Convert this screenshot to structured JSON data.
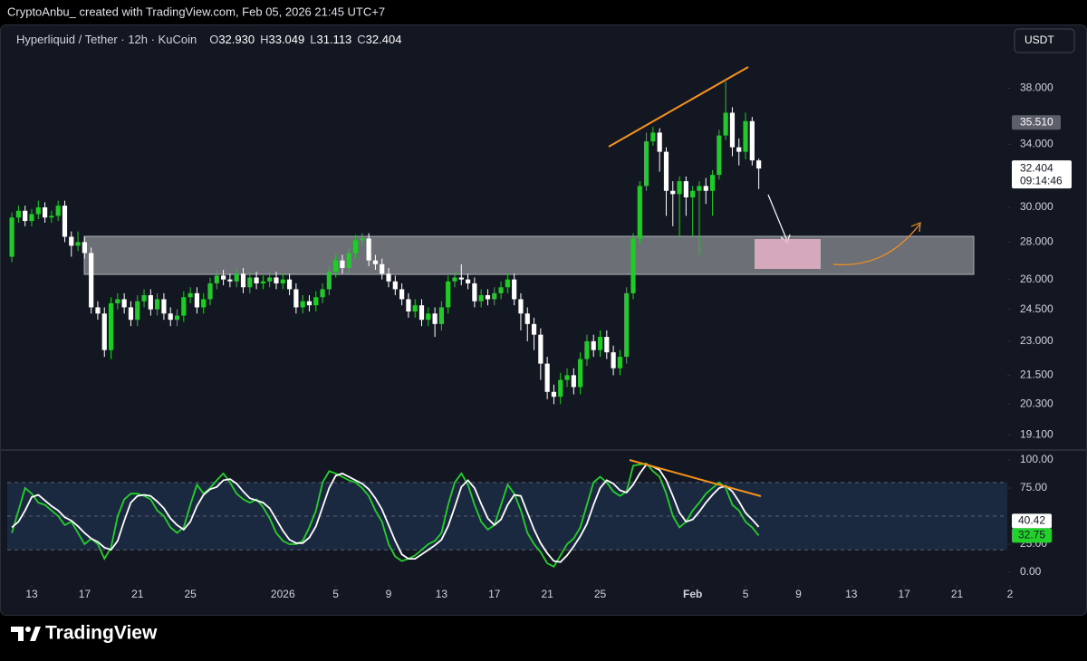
{
  "header": {
    "credit": "CryptoAnbu_ created with TradingView.com, Feb 05, 2026 21:45 UTC+7",
    "currency": "USDT"
  },
  "footer": {
    "brand": "TradingView"
  },
  "chart_data": [
    {
      "type": "candlestick",
      "title": "Hyperliquid / Tether · 12h · KuCoin",
      "ohlc_legend": [
        {
          "key": "O",
          "value": "32.930"
        },
        {
          "key": "H",
          "value": "33.049"
        },
        {
          "key": "L",
          "value": "31.113"
        },
        {
          "key": "C",
          "value": "32.404"
        }
      ],
      "log_scale": true,
      "up_color": "#22c92a",
      "down_color": "#ffffff",
      "xlim": [
        -1.85,
        73.8
      ],
      "xticks": [
        {
          "value": 0,
          "label": "13"
        },
        {
          "value": 4,
          "label": "17"
        },
        {
          "value": 8,
          "label": "21"
        },
        {
          "value": 12,
          "label": "25"
        },
        {
          "value": 19,
          "label": "2026"
        },
        {
          "value": 23,
          "label": "5"
        },
        {
          "value": 27,
          "label": "9"
        },
        {
          "value": 31,
          "label": "13"
        },
        {
          "value": 35,
          "label": "17"
        },
        {
          "value": 39,
          "label": "21"
        },
        {
          "value": 43,
          "label": "25"
        },
        {
          "value": 50,
          "label": "Feb"
        },
        {
          "value": 54,
          "label": "5"
        },
        {
          "value": 58,
          "label": "9"
        },
        {
          "value": 62,
          "label": "13"
        },
        {
          "value": 66,
          "label": "17"
        },
        {
          "value": 70,
          "label": "21"
        },
        {
          "value": 74,
          "label": "2"
        }
      ],
      "ylim": [
        18.6,
        42.9
      ],
      "yticks": [
        {
          "value": 38,
          "label": "38.000"
        },
        {
          "value": 34,
          "label": "34.000"
        },
        {
          "value": 30,
          "label": "30.000"
        },
        {
          "value": 28,
          "label": "28.000"
        },
        {
          "value": 26,
          "label": "26.000"
        },
        {
          "value": 24.5,
          "label": "24.500"
        },
        {
          "value": 23,
          "label": "23.000"
        },
        {
          "value": 21.5,
          "label": "21.500"
        },
        {
          "value": 20.3,
          "label": "20.300"
        },
        {
          "value": 19.1,
          "label": "19.100"
        }
      ],
      "price_marker": {
        "value": 35.51,
        "label": "35.510"
      },
      "countdown": "09:14:46",
      "x": [
        -1.5,
        -1,
        -0.5,
        0,
        0.5,
        1,
        1.5,
        2,
        2.5,
        3,
        3.5,
        4,
        4.5,
        5,
        5.5,
        6,
        6.5,
        7,
        7.5,
        8,
        8.5,
        9,
        9.5,
        10,
        10.5,
        11,
        11.5,
        12,
        12.5,
        13,
        13.5,
        14,
        14.5,
        15,
        15.5,
        16,
        16.5,
        17,
        17.5,
        18,
        18.5,
        19,
        19.5,
        20,
        20.5,
        21,
        21.5,
        22,
        22.5,
        23,
        23.5,
        24,
        24.5,
        25,
        25.5,
        26,
        26.5,
        27,
        27.5,
        28,
        28.5,
        29,
        29.5,
        30,
        30.5,
        31,
        31.5,
        32,
        32.5,
        33,
        33.5,
        34,
        34.5,
        35,
        35.5,
        36,
        36.5,
        37,
        37.5,
        38,
        38.5,
        39,
        39.5,
        40,
        40.5,
        41,
        41.5,
        42,
        42.5,
        43,
        43.5,
        44,
        44.5,
        45,
        45.5,
        46,
        46.5,
        47,
        47.5,
        48,
        48.5,
        49,
        49.5,
        50,
        50.5,
        51,
        51.5,
        52,
        52.5,
        53,
        53.5,
        54,
        54.5,
        55
      ],
      "open": [
        27.2,
        29.4,
        29.8,
        29.2,
        29.6,
        30.0,
        29.4,
        29.5,
        30.1,
        28.3,
        27.8,
        28.0,
        27.4,
        24.6,
        24.3,
        22.6,
        24.8,
        25.0,
        24.6,
        24.0,
        24.9,
        25.2,
        24.5,
        25.0,
        24.3,
        24.0,
        24.2,
        25.1,
        25.3,
        24.6,
        25.0,
        25.8,
        26.2,
        26.0,
        25.9,
        26.3,
        25.6,
        26.1,
        25.8,
        25.9,
        26.1,
        25.8,
        26.0,
        25.5,
        24.6,
        24.9,
        24.7,
        25.1,
        25.5,
        26.4,
        27.0,
        26.6,
        27.4,
        28.1,
        28.2,
        27.0,
        26.8,
        26.3,
        25.9,
        25.5,
        25.0,
        24.4,
        24.7,
        24.0,
        24.3,
        23.8,
        24.6,
        25.9,
        26.1,
        26.0,
        25.8,
        24.9,
        25.2,
        25.0,
        25.3,
        25.6,
        26.0,
        25.0,
        24.3,
        23.8,
        23.3,
        22.0,
        20.8,
        20.6,
        21.3,
        21.5,
        21.0,
        22.2,
        23.0,
        22.6,
        23.2,
        22.5,
        21.8,
        22.3,
        25.3,
        28.2,
        31.3,
        34.2,
        34.8,
        33.5,
        31.0,
        30.8,
        31.6,
        30.6,
        31.0,
        31.3,
        31.0,
        32.0,
        34.6,
        36.2,
        33.8,
        33.5,
        35.6,
        32.93
      ],
      "high": [
        29.7,
        30.1,
        30.1,
        29.9,
        30.4,
        30.3,
        29.8,
        30.4,
        30.4,
        28.6,
        28.6,
        28.3,
        27.7,
        24.9,
        24.6,
        25.1,
        25.3,
        25.3,
        24.9,
        25.2,
        25.5,
        25.5,
        25.3,
        25.3,
        24.6,
        24.5,
        25.4,
        25.6,
        25.6,
        25.3,
        26.1,
        26.5,
        26.5,
        26.3,
        26.6,
        26.6,
        26.4,
        26.4,
        26.2,
        26.4,
        26.4,
        26.3,
        26.3,
        25.8,
        25.2,
        25.2,
        25.4,
        25.8,
        26.7,
        27.3,
        27.3,
        27.7,
        28.4,
        28.5,
        28.5,
        27.3,
        27.1,
        26.6,
        26.2,
        25.8,
        25.3,
        25.0,
        25.0,
        24.6,
        24.6,
        24.9,
        26.2,
        26.4,
        26.8,
        26.3,
        26.1,
        25.5,
        25.5,
        25.6,
        25.9,
        26.3,
        26.3,
        25.3,
        24.6,
        24.1,
        23.6,
        22.3,
        21.1,
        21.6,
        21.8,
        21.8,
        22.5,
        23.3,
        23.3,
        23.5,
        23.5,
        22.8,
        22.6,
        25.6,
        28.5,
        31.6,
        34.8,
        35.2,
        35.1,
        33.8,
        31.6,
        31.9,
        31.9,
        31.3,
        31.6,
        31.8,
        32.3,
        35.0,
        38.5,
        36.6,
        34.4,
        36.2,
        35.9,
        33.049
      ],
      "low": [
        26.9,
        29.1,
        28.9,
        28.9,
        29.3,
        29.1,
        29.1,
        29.2,
        28.0,
        27.2,
        27.5,
        27.1,
        24.3,
        24.0,
        22.3,
        22.2,
        24.5,
        24.3,
        23.7,
        23.7,
        24.6,
        24.2,
        24.2,
        24.0,
        23.7,
        23.7,
        23.9,
        24.8,
        24.3,
        24.3,
        24.7,
        25.5,
        25.7,
        25.6,
        25.6,
        25.3,
        25.3,
        25.5,
        25.5,
        25.6,
        25.5,
        25.5,
        25.2,
        24.3,
        24.3,
        24.4,
        24.4,
        24.8,
        25.2,
        26.1,
        26.3,
        26.3,
        27.1,
        27.8,
        26.7,
        26.5,
        26.0,
        25.6,
        25.2,
        24.7,
        24.1,
        24.1,
        23.7,
        23.7,
        23.2,
        23.5,
        24.3,
        25.6,
        25.7,
        25.5,
        24.6,
        24.6,
        24.7,
        24.7,
        25.0,
        25.3,
        24.7,
        23.5,
        23.0,
        22.6,
        21.3,
        20.5,
        20.3,
        20.3,
        21.0,
        20.7,
        20.7,
        21.9,
        22.3,
        22.3,
        22.2,
        21.5,
        21.5,
        22.0,
        25.0,
        27.9,
        31.0,
        33.9,
        32.2,
        29.5,
        28.9,
        28.3,
        29.5,
        28.3,
        27.3,
        30.2,
        29.5,
        31.7,
        34.3,
        33.2,
        32.6,
        33.0,
        32.6,
        31.113
      ],
      "close": [
        29.4,
        29.8,
        29.2,
        29.6,
        30.0,
        29.4,
        29.5,
        30.1,
        28.3,
        27.8,
        28.0,
        27.4,
        24.6,
        24.3,
        22.6,
        24.8,
        25.0,
        24.6,
        24.0,
        24.9,
        25.2,
        24.5,
        25.0,
        24.3,
        24.0,
        24.2,
        25.1,
        25.3,
        24.6,
        25.0,
        25.8,
        26.2,
        26.0,
        25.9,
        26.3,
        25.6,
        26.1,
        25.8,
        25.9,
        26.1,
        25.8,
        26.0,
        25.5,
        24.6,
        24.9,
        24.7,
        25.1,
        25.5,
        26.4,
        27.0,
        26.6,
        27.4,
        28.1,
        28.2,
        27.0,
        26.8,
        26.3,
        25.9,
        25.5,
        25.0,
        24.4,
        24.7,
        24.0,
        24.3,
        23.8,
        24.6,
        25.9,
        26.1,
        26.0,
        25.8,
        24.9,
        25.2,
        25.0,
        25.3,
        25.6,
        26.0,
        25.0,
        24.3,
        23.8,
        23.3,
        22.0,
        20.8,
        20.6,
        21.3,
        21.5,
        21.0,
        22.2,
        23.0,
        22.6,
        23.2,
        22.5,
        21.8,
        22.3,
        25.3,
        28.2,
        31.3,
        34.2,
        34.8,
        33.5,
        31.0,
        30.8,
        31.6,
        30.6,
        31.0,
        31.3,
        31.0,
        32.0,
        34.6,
        36.2,
        33.8,
        33.5,
        35.6,
        32.93,
        32.404
      ]
    },
    {
      "type": "line",
      "ylim": [
        -10.5,
        106.5
      ],
      "yticks": [
        {
          "value": 100,
          "label": "100.00"
        },
        {
          "value": 75,
          "label": "75.00"
        },
        {
          "value": 25,
          "label": "25.00"
        },
        {
          "value": 0,
          "label": "0.00"
        }
      ],
      "hlines": [
        80,
        50,
        20
      ],
      "band_color": "#1a2940",
      "series": [
        {
          "color": "#22d12a",
          "values": [
            35,
            55,
            75,
            70,
            62,
            60,
            55,
            50,
            42,
            45,
            35,
            25,
            30,
            25,
            12,
            22,
            50,
            65,
            70,
            70,
            68,
            65,
            55,
            50,
            40,
            35,
            40,
            60,
            78,
            70,
            75,
            82,
            88,
            80,
            70,
            65,
            62,
            65,
            58,
            48,
            35,
            28,
            25,
            25,
            28,
            40,
            55,
            80,
            90,
            88,
            85,
            82,
            80,
            75,
            68,
            55,
            45,
            25,
            14,
            10,
            12,
            15,
            20,
            25,
            28,
            35,
            60,
            80,
            88,
            78,
            60,
            45,
            38,
            42,
            60,
            78,
            70,
            55,
            35,
            25,
            18,
            8,
            5,
            15,
            25,
            30,
            40,
            60,
            80,
            85,
            80,
            72,
            68,
            72,
            95,
            96,
            97,
            90,
            85,
            70,
            50,
            40,
            45,
            55,
            62,
            70,
            75,
            80,
            75,
            60,
            55,
            45,
            40,
            32.75
          ]
        },
        {
          "color": "#ffffff",
          "values": [
            40,
            45,
            55,
            67,
            69,
            64,
            59,
            55,
            49,
            46,
            41,
            35,
            30,
            27,
            22,
            20,
            28,
            46,
            62,
            68,
            69,
            68,
            63,
            57,
            48,
            42,
            38,
            45,
            59,
            69,
            74,
            76,
            82,
            83,
            79,
            72,
            66,
            64,
            62,
            57,
            47,
            37,
            29,
            26,
            26,
            31,
            41,
            58,
            75,
            86,
            88,
            85,
            82,
            79,
            74,
            66,
            56,
            42,
            28,
            16,
            12,
            12,
            16,
            20,
            24,
            29,
            41,
            58,
            76,
            82,
            75,
            61,
            48,
            42,
            47,
            60,
            69,
            68,
            53,
            38,
            26,
            17,
            10,
            9,
            15,
            23,
            32,
            43,
            60,
            75,
            82,
            79,
            73,
            71,
            78,
            88,
            96,
            94,
            91,
            82,
            68,
            53,
            45,
            47,
            54,
            62,
            69,
            75,
            77,
            72,
            63,
            53,
            47,
            40.42
          ]
        }
      ]
    }
  ]
}
